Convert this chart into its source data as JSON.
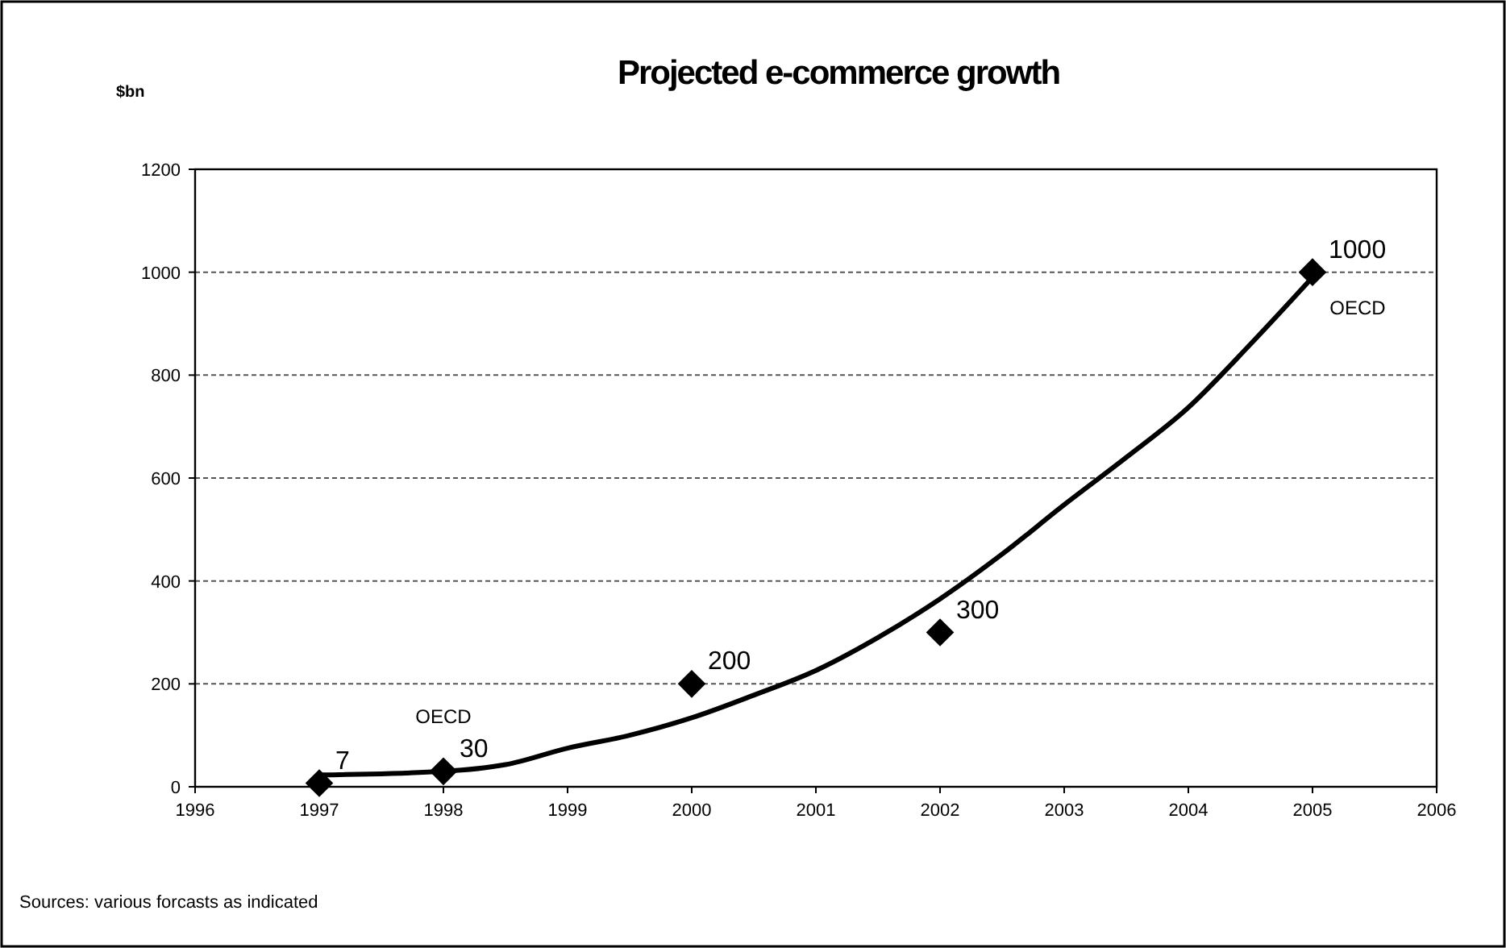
{
  "chart_data": {
    "type": "scatter",
    "title": "Projected e-commerce growth",
    "ylabel": "$bn",
    "annotations": [
      {
        "text": "OECD",
        "x": 1998,
        "y": 30
      },
      {
        "text": "OECD",
        "x": 2005,
        "y": 1000
      },
      "Sources: various forcasts as indicated"
    ],
    "series": [
      {
        "type": "line",
        "color": "#000000",
        "x": [
          1997,
          1998,
          1998.5,
          1999,
          1999.5,
          2000,
          2000.5,
          2001,
          2001.5,
          2002,
          2002.5,
          2003,
          2003.5,
          2004,
          2004.5,
          2005
        ],
        "values": [
          23,
          30,
          43,
          75,
          100,
          134,
          178,
          226,
          290,
          365,
          452,
          548,
          640,
          737,
          860,
          990
        ],
        "marker": "none"
      },
      {
        "color": "#000000",
        "x": [
          1997,
          1998,
          2000,
          2002,
          2005
        ],
        "values": [
          7,
          30,
          200,
          300,
          1000
        ],
        "marker": "diamond",
        "data_labels": true
      }
    ],
    "xlim": [
      1996,
      2006
    ],
    "xticks": [
      1996,
      1997,
      1998,
      1999,
      2000,
      2001,
      2002,
      2003,
      2004,
      2005,
      2006
    ],
    "ylim": [
      0,
      1200
    ],
    "yticks": [
      0,
      200,
      400,
      600,
      800,
      1000,
      1200
    ],
    "grid": "y"
  }
}
